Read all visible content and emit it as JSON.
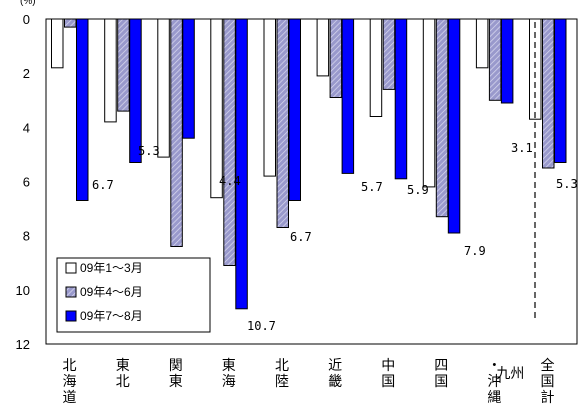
{
  "chart_data": {
    "type": "bar",
    "unit_label": "(%)",
    "y_inverted": true,
    "ylim": [
      0,
      12
    ],
    "yticks": [
      "0",
      "2",
      "4",
      "6",
      "8",
      "10",
      "12"
    ],
    "categories": [
      "北海道",
      "東北",
      "関東",
      "東海",
      "北陸",
      "近畿",
      "中国",
      "四国",
      "九州・沖縄",
      "全国計"
    ],
    "category_lines": [
      [
        "北",
        "海",
        "道"
      ],
      [
        "東",
        "北"
      ],
      [
        "関",
        "東"
      ],
      [
        "東",
        "海"
      ],
      [
        "北",
        "陸"
      ],
      [
        "近",
        "畿"
      ],
      [
        "中",
        "国"
      ],
      [
        "四",
        "国"
      ],
      [
        "・",
        "沖",
        "縄"
      ],
      [
        "全",
        "国",
        "計"
      ]
    ],
    "category_side_text": [
      "",
      "",
      "",
      "",
      "",
      "",
      "",
      "",
      "九州",
      ""
    ],
    "series": [
      {
        "name": "09年1～3月",
        "values": [
          1.8,
          3.8,
          5.1,
          6.6,
          5.8,
          2.1,
          3.6,
          6.2,
          1.8,
          3.7
        ],
        "color": "#ffffff",
        "pattern": "none"
      },
      {
        "name": "09年4～6月",
        "values": [
          0.3,
          3.4,
          8.4,
          9.1,
          7.7,
          2.9,
          2.6,
          7.3,
          3.0,
          5.5
        ],
        "color": "#9999cc",
        "pattern": "hatch"
      },
      {
        "name": "09年7～8月",
        "values": [
          6.7,
          5.3,
          4.4,
          10.7,
          6.7,
          5.7,
          5.9,
          7.9,
          3.1,
          5.3
        ],
        "color": "#0000ff",
        "pattern": "none"
      }
    ],
    "data_labels": [
      "6.7",
      "5.3",
      "4.4",
      "10.7",
      "6.7",
      "5.7",
      "5.9",
      "7.9",
      "3.1",
      "5.3"
    ],
    "legend_position": "bottom-left",
    "grid": false,
    "separator_before_last": true
  }
}
